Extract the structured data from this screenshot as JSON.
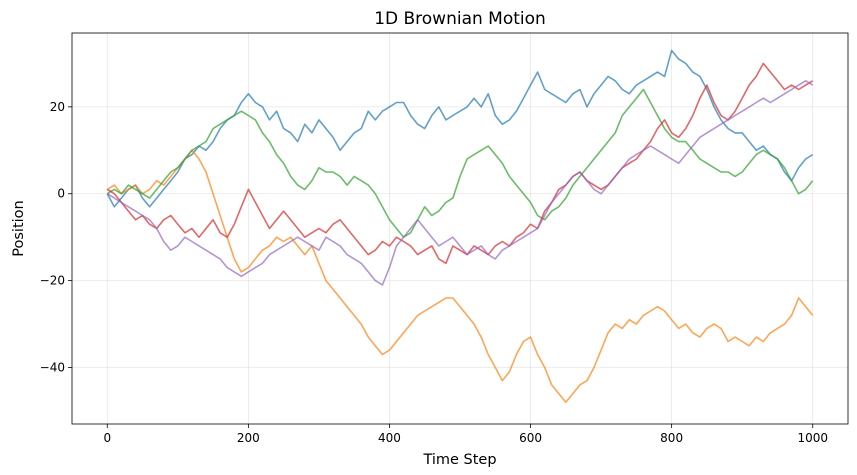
{
  "chart_data": {
    "type": "line",
    "title": "1D Brownian Motion",
    "xlabel": "Time Step",
    "ylabel": "Position",
    "xlim": [
      -50,
      1050
    ],
    "ylim": [
      -53,
      37
    ],
    "xticks": [
      0,
      200,
      400,
      600,
      800,
      1000
    ],
    "yticks": [
      -40,
      -20,
      0,
      20
    ],
    "ytick_labels": [
      "−40",
      "−20",
      "0",
      "20"
    ],
    "grid": true,
    "series": [
      {
        "color": "#1f77b4",
        "x": [
          0,
          10,
          20,
          30,
          40,
          50,
          60,
          70,
          80,
          90,
          100,
          110,
          120,
          130,
          140,
          150,
          160,
          170,
          180,
          190,
          200,
          210,
          220,
          230,
          240,
          250,
          260,
          270,
          280,
          290,
          300,
          310,
          320,
          330,
          340,
          350,
          360,
          370,
          380,
          390,
          400,
          410,
          420,
          430,
          440,
          450,
          460,
          470,
          480,
          490,
          500,
          510,
          520,
          530,
          540,
          550,
          560,
          570,
          580,
          590,
          600,
          610,
          620,
          630,
          640,
          650,
          660,
          670,
          680,
          690,
          700,
          710,
          720,
          730,
          740,
          750,
          760,
          770,
          780,
          790,
          800,
          810,
          820,
          830,
          840,
          850,
          860,
          870,
          880,
          890,
          900,
          910,
          920,
          930,
          940,
          950,
          960,
          970,
          980,
          990,
          1000
        ],
        "y": [
          0,
          -3,
          -1,
          1,
          2,
          -1,
          -3,
          -1,
          1,
          3,
          5,
          8,
          9,
          11,
          10,
          12,
          15,
          17,
          18,
          21,
          23,
          21,
          20,
          17,
          19,
          15,
          14,
          12,
          16,
          14,
          17,
          15,
          13,
          10,
          12,
          14,
          15,
          19,
          17,
          19,
          20,
          21,
          21,
          18,
          16,
          15,
          18,
          20,
          17,
          18,
          19,
          20,
          22,
          20,
          23,
          18,
          16,
          17,
          19,
          22,
          25,
          28,
          24,
          23,
          22,
          21,
          23,
          24,
          20,
          23,
          25,
          27,
          26,
          24,
          23,
          25,
          26,
          27,
          28,
          27,
          33,
          31,
          30,
          28,
          27,
          24,
          20,
          17,
          15,
          14,
          14,
          12,
          10,
          11,
          9,
          8,
          5,
          3,
          6,
          8,
          9
        ]
      },
      {
        "color": "#ff7f0e",
        "x": [
          0,
          10,
          20,
          30,
          40,
          50,
          60,
          70,
          80,
          90,
          100,
          110,
          120,
          130,
          140,
          150,
          160,
          170,
          180,
          190,
          200,
          210,
          220,
          230,
          240,
          250,
          260,
          270,
          280,
          290,
          300,
          310,
          320,
          330,
          340,
          350,
          360,
          370,
          380,
          390,
          400,
          410,
          420,
          430,
          440,
          450,
          460,
          470,
          480,
          490,
          500,
          510,
          520,
          530,
          540,
          550,
          560,
          570,
          580,
          590,
          600,
          610,
          620,
          630,
          640,
          650,
          660,
          670,
          680,
          690,
          700,
          710,
          720,
          730,
          740,
          750,
          760,
          770,
          780,
          790,
          800,
          810,
          820,
          830,
          840,
          850,
          860,
          870,
          880,
          890,
          900,
          910,
          920,
          930,
          940,
          950,
          960,
          970,
          980,
          990,
          1000
        ],
        "y": [
          1,
          2,
          0,
          1,
          2,
          0,
          1,
          3,
          2,
          4,
          6,
          8,
          10,
          8,
          5,
          0,
          -5,
          -10,
          -15,
          -18,
          -17,
          -15,
          -13,
          -12,
          -10,
          -11,
          -10,
          -12,
          -14,
          -12,
          -16,
          -20,
          -22,
          -24,
          -26,
          -28,
          -30,
          -33,
          -35,
          -37,
          -36,
          -34,
          -32,
          -30,
          -28,
          -27,
          -26,
          -25,
          -24,
          -24,
          -26,
          -28,
          -30,
          -33,
          -37,
          -40,
          -43,
          -41,
          -37,
          -34,
          -33,
          -37,
          -40,
          -44,
          -46,
          -48,
          -46,
          -44,
          -43,
          -40,
          -36,
          -32,
          -30,
          -31,
          -29,
          -30,
          -28,
          -27,
          -26,
          -27,
          -29,
          -31,
          -30,
          -32,
          -33,
          -31,
          -30,
          -31,
          -34,
          -33,
          -34,
          -35,
          -33,
          -34,
          -32,
          -31,
          -30,
          -28,
          -24,
          -26,
          -28
        ]
      },
      {
        "color": "#2ca02c",
        "x": [
          0,
          10,
          20,
          30,
          40,
          50,
          60,
          70,
          80,
          90,
          100,
          110,
          120,
          130,
          140,
          150,
          160,
          170,
          180,
          190,
          200,
          210,
          220,
          230,
          240,
          250,
          260,
          270,
          280,
          290,
          300,
          310,
          320,
          330,
          340,
          350,
          360,
          370,
          380,
          390,
          400,
          410,
          420,
          430,
          440,
          450,
          460,
          470,
          480,
          490,
          500,
          510,
          520,
          530,
          540,
          550,
          560,
          570,
          580,
          590,
          600,
          610,
          620,
          630,
          640,
          650,
          660,
          670,
          680,
          690,
          700,
          710,
          720,
          730,
          740,
          750,
          760,
          770,
          780,
          790,
          800,
          810,
          820,
          830,
          840,
          850,
          860,
          870,
          880,
          890,
          900,
          910,
          920,
          930,
          940,
          950,
          960,
          970,
          980,
          990,
          1000
        ],
        "y": [
          0,
          1,
          0,
          2,
          1,
          0,
          -1,
          1,
          3,
          5,
          6,
          8,
          10,
          11,
          12,
          15,
          16,
          17,
          18,
          19,
          18,
          17,
          14,
          12,
          9,
          7,
          4,
          2,
          1,
          3,
          6,
          5,
          5,
          4,
          2,
          4,
          3,
          2,
          0,
          -3,
          -6,
          -8,
          -10,
          -9,
          -6,
          -3,
          -5,
          -4,
          -2,
          -1,
          4,
          8,
          9,
          10,
          11,
          9,
          7,
          4,
          2,
          0,
          -2,
          -5,
          -6,
          -4,
          -3,
          -1,
          2,
          4,
          6,
          8,
          10,
          12,
          14,
          18,
          20,
          22,
          24,
          21,
          18,
          15,
          13,
          12,
          12,
          10,
          8,
          7,
          6,
          5,
          5,
          4,
          5,
          7,
          9,
          10,
          9,
          8,
          6,
          3,
          0,
          1,
          3
        ]
      },
      {
        "color": "#d62728",
        "x": [
          0,
          10,
          20,
          30,
          40,
          50,
          60,
          70,
          80,
          90,
          100,
          110,
          120,
          130,
          140,
          150,
          160,
          170,
          180,
          190,
          200,
          210,
          220,
          230,
          240,
          250,
          260,
          270,
          280,
          290,
          300,
          310,
          320,
          330,
          340,
          350,
          360,
          370,
          380,
          390,
          400,
          410,
          420,
          430,
          440,
          450,
          460,
          470,
          480,
          490,
          500,
          510,
          520,
          530,
          540,
          550,
          560,
          570,
          580,
          590,
          600,
          610,
          620,
          630,
          640,
          650,
          660,
          670,
          680,
          690,
          700,
          710,
          720,
          730,
          740,
          750,
          760,
          770,
          780,
          790,
          800,
          810,
          820,
          830,
          840,
          850,
          860,
          870,
          880,
          890,
          900,
          910,
          920,
          930,
          940,
          950,
          960,
          970,
          980,
          990,
          1000
        ],
        "y": [
          1,
          0,
          -2,
          -4,
          -6,
          -5,
          -7,
          -8,
          -6,
          -5,
          -7,
          -9,
          -8,
          -10,
          -8,
          -6,
          -9,
          -10,
          -7,
          -3,
          1,
          -2,
          -5,
          -8,
          -6,
          -4,
          -6,
          -8,
          -10,
          -9,
          -8,
          -9,
          -7,
          -6,
          -8,
          -10,
          -12,
          -14,
          -13,
          -11,
          -12,
          -10,
          -11,
          -12,
          -14,
          -13,
          -12,
          -15,
          -16,
          -12,
          -13,
          -14,
          -12,
          -13,
          -14,
          -12,
          -11,
          -12,
          -10,
          -9,
          -7,
          -8,
          -4,
          -2,
          1,
          2,
          4,
          5,
          3,
          2,
          1,
          2,
          4,
          6,
          7,
          8,
          10,
          12,
          15,
          17,
          14,
          13,
          15,
          18,
          22,
          25,
          21,
          18,
          17,
          19,
          22,
          25,
          27,
          30,
          28,
          26,
          24,
          25,
          24,
          25,
          26
        ]
      },
      {
        "color": "#9467bd",
        "x": [
          0,
          10,
          20,
          30,
          40,
          50,
          60,
          70,
          80,
          90,
          100,
          110,
          120,
          130,
          140,
          150,
          160,
          170,
          180,
          190,
          200,
          210,
          220,
          230,
          240,
          250,
          260,
          270,
          280,
          290,
          300,
          310,
          320,
          330,
          340,
          350,
          360,
          370,
          380,
          390,
          400,
          410,
          420,
          430,
          440,
          450,
          460,
          470,
          480,
          490,
          500,
          510,
          520,
          530,
          540,
          550,
          560,
          570,
          580,
          590,
          600,
          610,
          620,
          630,
          640,
          650,
          660,
          670,
          680,
          690,
          700,
          710,
          720,
          730,
          740,
          750,
          760,
          770,
          780,
          790,
          800,
          810,
          820,
          830,
          840,
          850,
          860,
          870,
          880,
          890,
          900,
          910,
          920,
          930,
          940,
          950,
          960,
          970,
          980,
          990,
          1000
        ],
        "y": [
          0,
          -1,
          -2,
          -3,
          -4,
          -5,
          -6,
          -8,
          -11,
          -13,
          -12,
          -10,
          -11,
          -12,
          -13,
          -14,
          -15,
          -17,
          -18,
          -19,
          -18,
          -17,
          -16,
          -14,
          -13,
          -12,
          -11,
          -10,
          -11,
          -12,
          -13,
          -10,
          -11,
          -12,
          -14,
          -15,
          -16,
          -18,
          -20,
          -21,
          -17,
          -12,
          -10,
          -8,
          -6,
          -8,
          -10,
          -12,
          -11,
          -10,
          -12,
          -14,
          -13,
          -12,
          -14,
          -15,
          -13,
          -12,
          -11,
          -10,
          -9,
          -8,
          -5,
          -2,
          0,
          2,
          4,
          5,
          3,
          1,
          0,
          2,
          4,
          6,
          8,
          9,
          10,
          11,
          10,
          9,
          8,
          7,
          9,
          11,
          13,
          14,
          15,
          16,
          17,
          18,
          19,
          20,
          21,
          22,
          21,
          22,
          23,
          24,
          25,
          26,
          25
        ]
      }
    ]
  }
}
